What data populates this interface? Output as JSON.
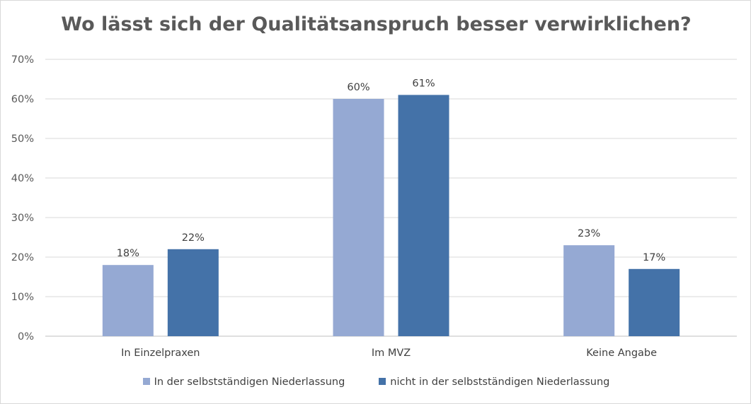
{
  "chart_data": {
    "type": "bar",
    "title": "Wo lässt sich der Qualitätsanspruch  besser verwirklichen?",
    "xlabel": "",
    "ylabel": "",
    "categories": [
      "In Einzelpraxen",
      "Im MVZ",
      "Keine Angabe"
    ],
    "series": [
      {
        "name": "In der selbstständigen Niederlassung",
        "values": [
          18,
          60,
          23
        ],
        "labels": [
          "18%",
          "60%",
          "23%"
        ],
        "color": "#95a9d3"
      },
      {
        "name": "nicht in der selbstständigen Niederlassung",
        "values": [
          22,
          61,
          17
        ],
        "labels": [
          "22%",
          "61%",
          "17%"
        ],
        "color": "#4472a8"
      }
    ],
    "ylim": [
      0,
      70
    ],
    "yticks": [
      "0%",
      "10%",
      "20%",
      "30%",
      "40%",
      "50%",
      "60%",
      "70%"
    ],
    "grid": true,
    "legend_position": "bottom"
  }
}
